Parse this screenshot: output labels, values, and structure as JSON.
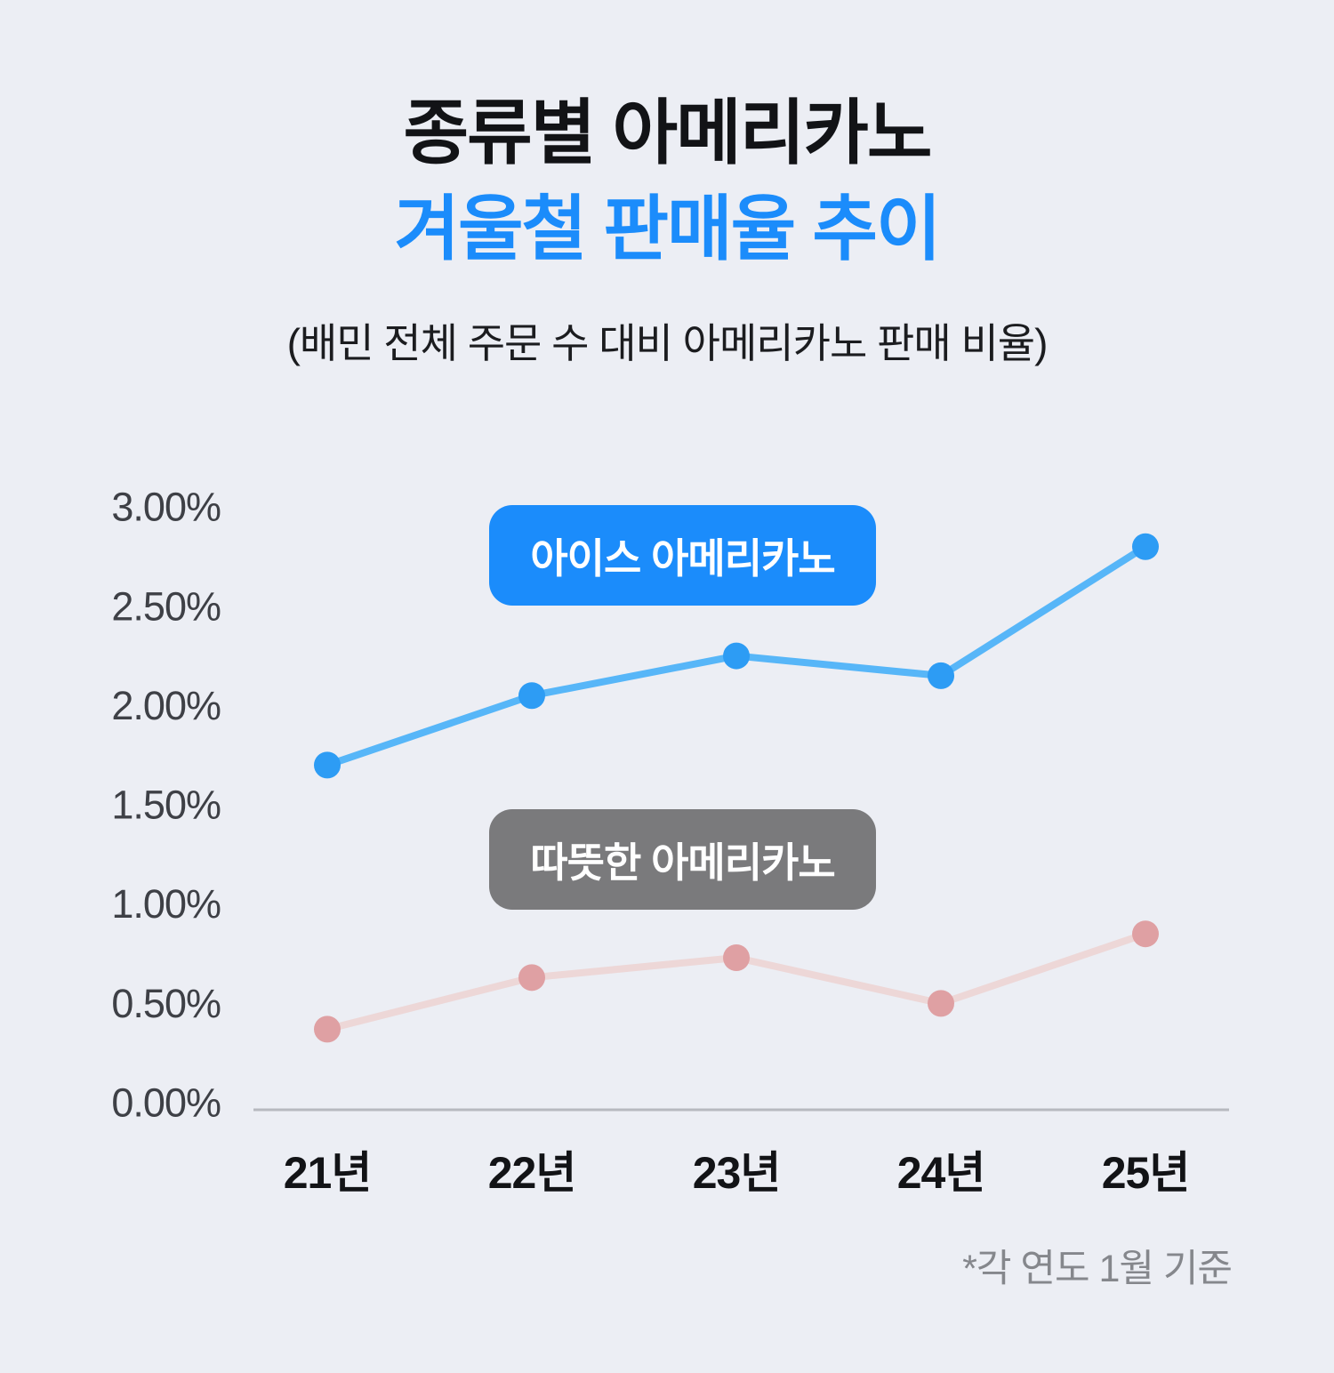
{
  "title": {
    "line1": "종류별 아메리카노",
    "line2": "겨울철 판매율 추이"
  },
  "subtitle": "(배민 전체 주문 수 대비 아메리카노 판매 비율)",
  "footnote": "*각 연도 1월 기준",
  "chart_data": {
    "type": "line",
    "categories": [
      "21년",
      "22년",
      "23년",
      "24년",
      "25년"
    ],
    "series": [
      {
        "name": "아이스 아메리카노",
        "values": [
          1.7,
          2.05,
          2.25,
          2.15,
          2.8
        ],
        "line_color": "#57B6F8",
        "dot_color": "#2D9CF4",
        "bubble_bg": "#1B8CFB"
      },
      {
        "name": "따뜻한 아메리카노",
        "values": [
          0.37,
          0.63,
          0.73,
          0.5,
          0.85
        ],
        "line_color": "#EDD7D7",
        "dot_color": "#DFA0A3",
        "bubble_bg": "#7A7A7C"
      }
    ],
    "y_ticks": [
      "3.00%",
      "2.50%",
      "2.00%",
      "1.50%",
      "1.00%",
      "0.50%",
      "0.00%"
    ],
    "ylim": [
      0,
      3
    ],
    "unit": "%",
    "grid": false,
    "legend_position": "chat-bubbles-inline"
  },
  "colors": {
    "background": "#ECEEF4",
    "title_accent": "#1B8CFB",
    "axis_line": "#B7B9BF",
    "tick_label": "#3E4046",
    "x_label": "#121316",
    "footnote": "#85878C"
  }
}
